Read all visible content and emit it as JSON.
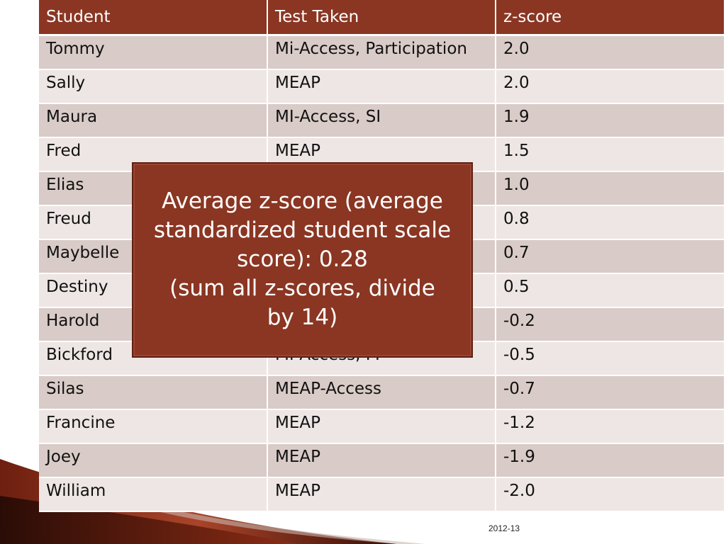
{
  "table": {
    "headers": [
      "Student",
      "Test Taken",
      "z-score"
    ],
    "rows": [
      [
        "Tommy",
        "Mi-Access, Participation",
        "2.0"
      ],
      [
        "Sally",
        "MEAP",
        "2.0"
      ],
      [
        "Maura",
        "MI-Access, SI",
        "1.9"
      ],
      [
        "Fred",
        "MEAP",
        "1.5"
      ],
      [
        "Elias",
        "",
        "1.0"
      ],
      [
        "Freud",
        "",
        "0.8"
      ],
      [
        "Maybelle",
        "",
        "0.7"
      ],
      [
        "Destiny",
        "",
        "0.5"
      ],
      [
        "Harold",
        "",
        "-0.2"
      ],
      [
        "Bickford",
        "MI-Access, FI",
        "-0.5"
      ],
      [
        "Silas",
        "MEAP-Access",
        "-0.7"
      ],
      [
        "Francine",
        "MEAP",
        "-1.2"
      ],
      [
        "Joey",
        "MEAP",
        "-1.9"
      ],
      [
        "William",
        "MEAP",
        "-2.0"
      ]
    ]
  },
  "callout": {
    "line1": "Average z-score (average",
    "line2": "standardized student scale",
    "line3": "score): 0.28",
    "line4": "(sum all z-scores, divide",
    "line5": "by 14)"
  },
  "footer": {
    "year": "2012-13"
  },
  "colors": {
    "header_bg": "#8a3623",
    "row_dark": "#d9cbc7",
    "row_light": "#ede6e4",
    "callout_bg": "#8a3623"
  }
}
